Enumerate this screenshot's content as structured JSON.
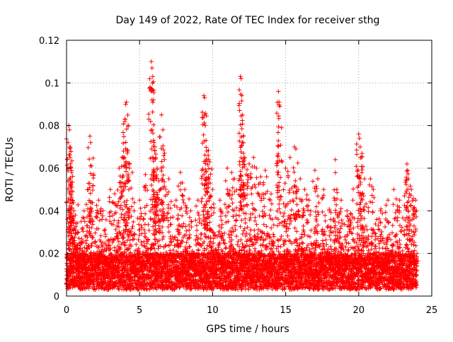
{
  "chart_data": {
    "type": "scatter",
    "title": "Day 149 of 2022, Rate Of TEC Index for receiver sthg",
    "xlabel": "GPS time / hours",
    "ylabel": "ROTI / TECUs",
    "xlim": [
      0,
      25
    ],
    "ylim": [
      0,
      0.12
    ],
    "xticks": [
      0,
      5,
      10,
      15,
      20,
      25
    ],
    "xtick_labels": [
      "0",
      "5",
      "10",
      "15",
      "20",
      "25"
    ],
    "yticks": [
      0,
      0.02,
      0.04,
      0.06,
      0.08,
      0.1,
      0.12
    ],
    "ytick_labels": [
      "0",
      "0.02",
      "0.04",
      "0.06",
      "0.08",
      "0.1",
      "0.12"
    ],
    "grid": true,
    "marker": "+",
    "color": "#ff0000",
    "baseline_range": [
      0.003,
      0.02
    ],
    "series": [
      {
        "name": "ROTI",
        "x": [
          0.15,
          0.2,
          0.25,
          0.25,
          0.3,
          0.35,
          0.4,
          0.5,
          0.6,
          0.8,
          1.0,
          1.2,
          1.5,
          1.6,
          1.65,
          1.7,
          2.2,
          2.5,
          3.0,
          3.3,
          3.6,
          3.8,
          3.9,
          4.0,
          4.05,
          4.1,
          4.2,
          4.3,
          4.5,
          5.0,
          5.4,
          5.8,
          5.85,
          5.9,
          5.95,
          6.0,
          6.05,
          6.1,
          6.2,
          6.4,
          6.5,
          6.6,
          6.7,
          7.0,
          7.5,
          7.8,
          8.1,
          8.5,
          9.0,
          9.4,
          9.45,
          9.5,
          9.55,
          9.6,
          9.7,
          9.8,
          10.0,
          10.5,
          11.0,
          11.3,
          11.5,
          11.9,
          11.95,
          12.0,
          12.05,
          12.1,
          12.2,
          12.3,
          12.5,
          12.8,
          13.0,
          13.3,
          13.6,
          14.0,
          14.5,
          14.55,
          14.6,
          15.0,
          15.3,
          15.6,
          15.7,
          16.0,
          16.3,
          16.6,
          17.0,
          17.2,
          17.6,
          18.0,
          18.4,
          18.5,
          18.8,
          19.2,
          19.6,
          20.0,
          20.05,
          20.1,
          20.2,
          20.4,
          20.8,
          21.0,
          21.5,
          22.0,
          22.4,
          22.8,
          23.3,
          23.35,
          23.4,
          23.6,
          23.9
        ],
        "y": [
          0.08,
          0.078,
          0.07,
          0.065,
          0.06,
          0.058,
          0.045,
          0.04,
          0.038,
          0.03,
          0.035,
          0.04,
          0.05,
          0.075,
          0.072,
          0.061,
          0.045,
          0.04,
          0.05,
          0.048,
          0.06,
          0.065,
          0.068,
          0.082,
          0.09,
          0.091,
          0.068,
          0.06,
          0.058,
          0.045,
          0.057,
          0.11,
          0.107,
          0.103,
          0.092,
          0.072,
          0.07,
          0.065,
          0.06,
          0.05,
          0.085,
          0.078,
          0.064,
          0.055,
          0.045,
          0.058,
          0.05,
          0.04,
          0.045,
          0.094,
          0.093,
          0.08,
          0.073,
          0.068,
          0.066,
          0.063,
          0.05,
          0.045,
          0.06,
          0.058,
          0.055,
          0.103,
          0.102,
          0.094,
          0.085,
          0.075,
          0.065,
          0.057,
          0.062,
          0.065,
          0.06,
          0.056,
          0.059,
          0.048,
          0.096,
          0.091,
          0.089,
          0.06,
          0.065,
          0.07,
          0.069,
          0.055,
          0.05,
          0.045,
          0.059,
          0.055,
          0.05,
          0.04,
          0.064,
          0.05,
          0.045,
          0.04,
          0.045,
          0.076,
          0.074,
          0.07,
          0.065,
          0.055,
          0.055,
          0.05,
          0.04,
          0.045,
          0.05,
          0.045,
          0.062,
          0.059,
          0.055,
          0.05,
          0.045
        ]
      }
    ]
  }
}
